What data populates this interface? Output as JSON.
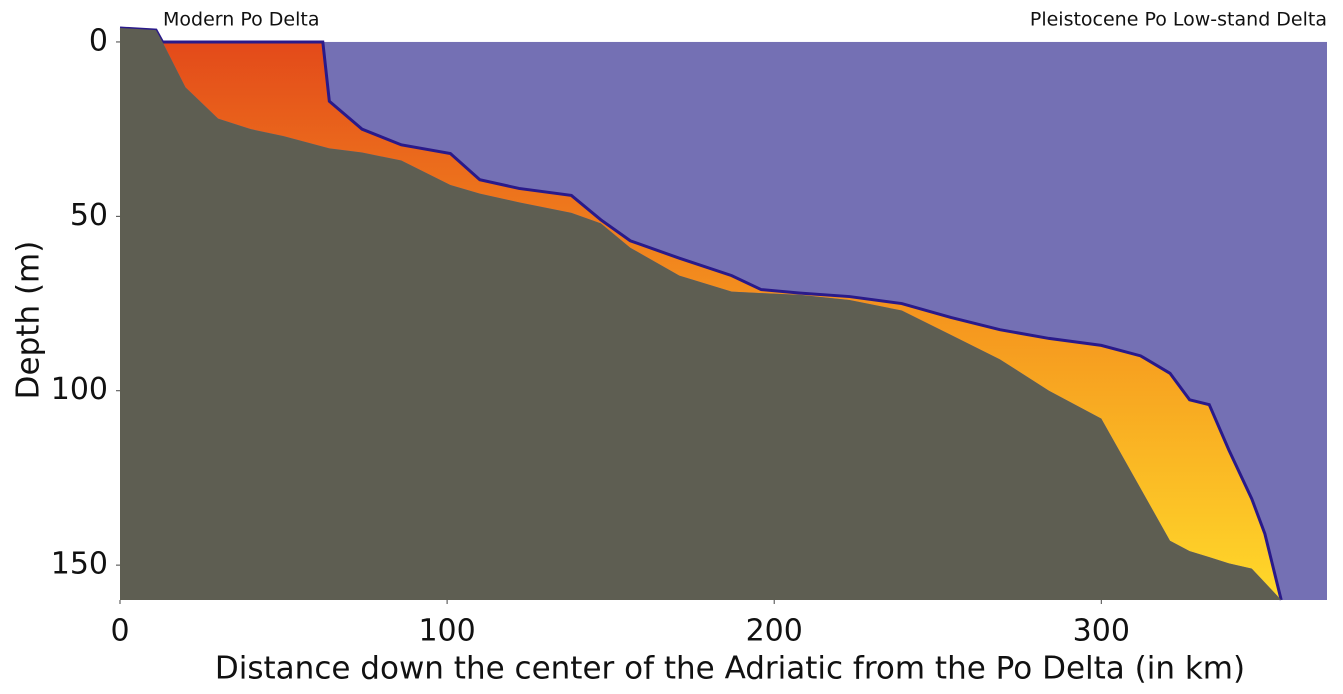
{
  "chart_data": {
    "type": "area",
    "annotations": [
      "Modern Po Delta",
      "Pleistocene Po Low-stand Delta"
    ],
    "xlabel": "Distance down the center of the Adriatic from the Po Delta (in km)",
    "ylabel": "Depth (m)",
    "x": [
      0,
      11,
      13,
      20,
      30,
      40,
      50,
      62,
      64,
      74,
      86,
      101,
      110,
      122,
      138,
      147,
      156,
      171,
      187,
      196,
      208,
      223,
      239,
      254,
      269,
      284,
      300,
      312,
      321,
      327,
      333,
      339,
      346,
      350,
      355
    ],
    "series": [
      {
        "color": "#5e5e52",
        "values": [
          -4,
          -3.4,
          0,
          13,
          22,
          25,
          27,
          30,
          30.5,
          31.7,
          34,
          41,
          43.5,
          46,
          49,
          52,
          59,
          67,
          71.6,
          72,
          72.5,
          74,
          77,
          84,
          91,
          100,
          108,
          128,
          143,
          146,
          147.7,
          149.5,
          151,
          155,
          160
        ]
      },
      {
        "color": "#2a1a8a",
        "values": [
          -4,
          -3.4,
          0,
          0,
          0,
          0,
          0,
          0,
          17,
          25,
          29.5,
          32,
          39.5,
          42,
          44,
          51,
          57,
          62,
          67,
          71,
          72,
          73,
          75,
          79,
          82.5,
          85,
          87,
          90,
          95,
          102.6,
          104,
          117,
          131,
          141,
          160
        ]
      }
    ],
    "water_color": "#7470b4",
    "xlim": [
      0,
      369
    ],
    "ylim": [
      -4,
      160
    ],
    "y_inverted": true,
    "xticks": [
      0,
      100,
      200,
      300
    ],
    "yticks": [
      0,
      50,
      100,
      150
    ]
  }
}
